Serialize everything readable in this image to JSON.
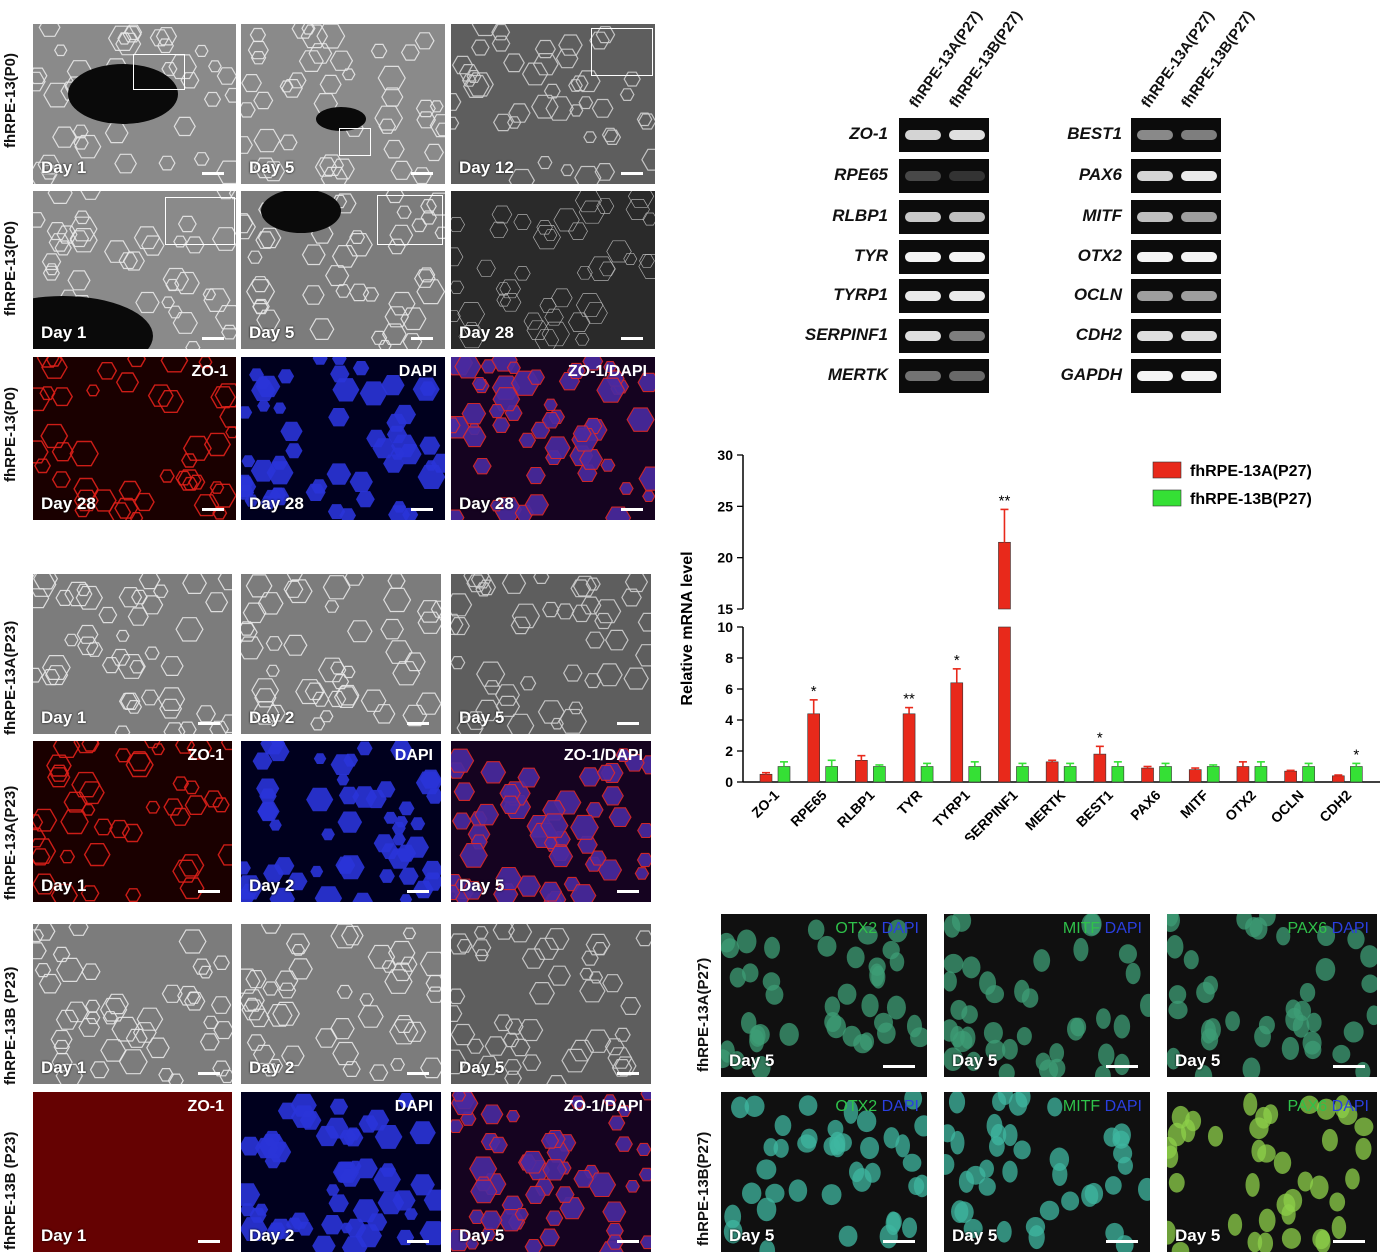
{
  "left_rows": {
    "p0": {
      "row_labels": [
        "fhRPE-13(P0)",
        "fhRPE-13(P0)",
        "fhRPE-13(P0)"
      ],
      "row1_days": [
        "Day 1",
        "Day 5",
        "Day 12"
      ],
      "row2_days": [
        "Day 1",
        "Day 5",
        "Day 28"
      ],
      "row3_days": [
        "Day 28",
        "Day 28",
        "Day 28"
      ],
      "row3_stains": [
        "ZO-1",
        "DAPI",
        "ZO-1/DAPI"
      ]
    },
    "a23": {
      "row_labels": [
        "fhRPE-13A(P23)",
        "fhRPE-13A(P23)"
      ],
      "row1_days": [
        "Day 1",
        "Day 2",
        "Day 5"
      ],
      "row2_days": [
        "Day 1",
        "Day 2",
        "Day 5"
      ],
      "row2_stains": [
        "ZO-1",
        "DAPI",
        "ZO-1/DAPI"
      ]
    },
    "b23": {
      "row_labels": [
        "fhRPE-13B (P23)",
        "fhRPE-13B (P23)"
      ],
      "row1_days": [
        "Day 1",
        "Day 2",
        "Day 5"
      ],
      "row2_days": [
        "Day 1",
        "Day 2",
        "Day 5"
      ],
      "row2_stains": [
        "ZO-1",
        "DAPI",
        "ZO-1/DAPI"
      ]
    }
  },
  "gel": {
    "column_headers": [
      "fhRPE-13A(P27)",
      "fhRPE-13B(P27)",
      "fhRPE-13A(P27)",
      "fhRPE-13B(P27)"
    ],
    "left_genes": [
      "ZO-1",
      "RPE65",
      "RLBP1",
      "TYR",
      "TYRP1",
      "SERPINF1",
      "MERTK"
    ],
    "right_genes": [
      "BEST1",
      "PAX6",
      "MITF",
      "OTX2",
      "OCLN",
      "CDH2",
      "GAPDH"
    ],
    "left_band_intensity": [
      [
        0.8,
        0.85
      ],
      [
        0.15,
        0.05
      ],
      [
        0.75,
        0.7
      ],
      [
        0.95,
        0.95
      ],
      [
        0.9,
        0.9
      ],
      [
        0.85,
        0.4
      ],
      [
        0.35,
        0.3
      ]
    ],
    "right_band_intensity": [
      [
        0.45,
        0.4
      ],
      [
        0.8,
        0.9
      ],
      [
        0.7,
        0.55
      ],
      [
        0.95,
        0.95
      ],
      [
        0.55,
        0.55
      ],
      [
        0.85,
        0.85
      ],
      [
        0.95,
        0.95
      ]
    ]
  },
  "chart_data": {
    "type": "bar",
    "ylabel": "Relative mRNA level",
    "categories": [
      "ZO-1",
      "RPE65",
      "RLBP1",
      "TYR",
      "TYRP1",
      "SERPINF1",
      "MERTK",
      "BEST1",
      "PAX6",
      "MITF",
      "OTX2",
      "OCLN",
      "CDH2"
    ],
    "series": [
      {
        "name": "fhRPE-13A(P27)",
        "color": "#e8291b",
        "values": [
          0.5,
          4.4,
          1.4,
          4.4,
          6.4,
          21.5,
          1.3,
          1.8,
          0.9,
          0.8,
          1.0,
          0.7,
          0.4
        ],
        "errors": [
          0.1,
          0.9,
          0.3,
          0.4,
          0.9,
          3.2,
          0.1,
          0.5,
          0.1,
          0.1,
          0.3,
          0.05,
          0.05
        ]
      },
      {
        "name": "fhRPE-13B(P27)",
        "color": "#35e035",
        "values": [
          1.0,
          1.0,
          1.0,
          1.0,
          1.0,
          1.0,
          1.0,
          1.0,
          1.0,
          1.0,
          1.0,
          1.0,
          1.0
        ],
        "errors": [
          0.3,
          0.4,
          0.1,
          0.2,
          0.3,
          0.2,
          0.2,
          0.3,
          0.2,
          0.1,
          0.3,
          0.2,
          0.2
        ]
      }
    ],
    "significance": [
      "",
      "*",
      "",
      "**",
      "*",
      "**",
      "",
      "*",
      "",
      "",
      "",
      "",
      "*"
    ],
    "y_lower_ticks": [
      0,
      2,
      4,
      6,
      8,
      10
    ],
    "y_upper_ticks": [
      15,
      20,
      25,
      30
    ],
    "axis_break": [
      10,
      15
    ],
    "legend_position": "top-right"
  },
  "ic": {
    "row_labels": [
      "fhRPE-13A(P27)",
      "fhRPE-13B(P27)"
    ],
    "markers": [
      "OTX2",
      "MITF",
      "PAX6"
    ],
    "dapi": "DAPI",
    "day": "Day 5"
  }
}
